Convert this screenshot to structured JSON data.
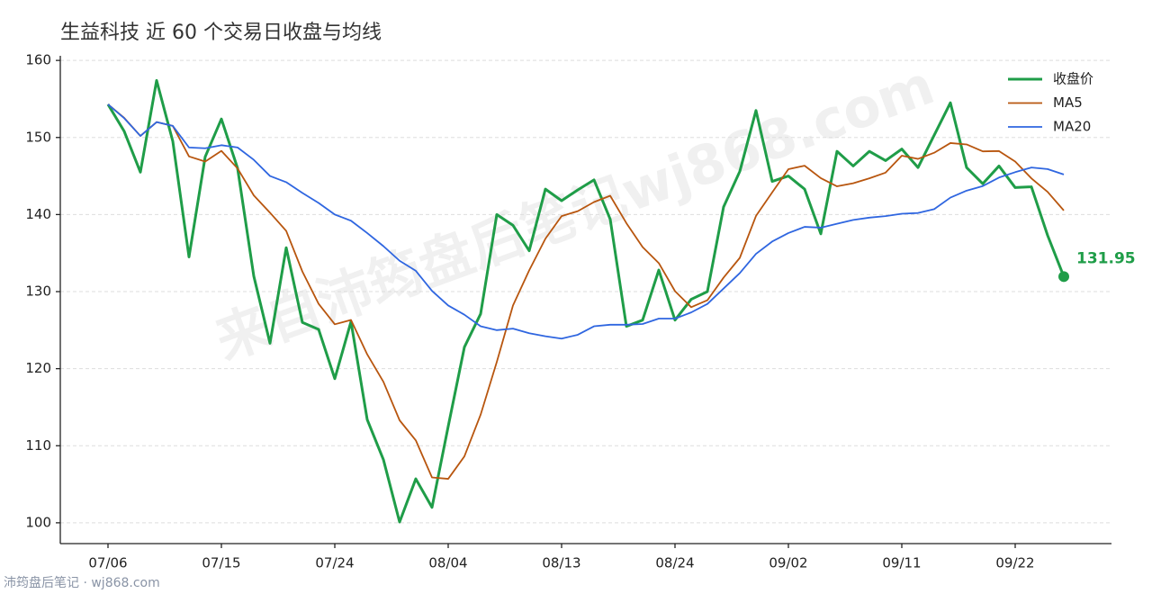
{
  "chart_data": {
    "type": "line",
    "title": "生益科技 近 60 个交易日收盘与均线",
    "watermark": "来自沛筠盘后笔记wj868.com",
    "footer": "沛筠盘后笔记 · wj868.com",
    "categories": [
      "07/06",
      null,
      null,
      null,
      null,
      null,
      null,
      "07/15",
      null,
      null,
      null,
      null,
      null,
      null,
      "07/24",
      null,
      null,
      null,
      null,
      null,
      null,
      "08/04",
      null,
      null,
      null,
      null,
      null,
      null,
      "08/13",
      null,
      null,
      null,
      null,
      null,
      null,
      "08/24",
      null,
      null,
      null,
      null,
      null,
      null,
      "09/02",
      null,
      null,
      null,
      null,
      null,
      null,
      "09/11",
      null,
      null,
      null,
      null,
      null,
      null,
      "09/22",
      null,
      null,
      null
    ],
    "ylim": [
      97.3,
      160.6
    ],
    "yticks": [
      100,
      110,
      120,
      130,
      140,
      150,
      160
    ],
    "grid": true,
    "legend": "upper right",
    "series": [
      {
        "name": "收盘价",
        "color": "#1f9d48",
        "width": 3,
        "last_label": true,
        "values": [
          154.3,
          150.8,
          145.5,
          157.4,
          149.5,
          134.5,
          147.5,
          152.4,
          146,
          132,
          123.3,
          135.7,
          126,
          125.1,
          118.7,
          126.1,
          113.4,
          108.2,
          100.1,
          105.7,
          102,
          112.5,
          122.8,
          127.1,
          140,
          138.6,
          135.3,
          143.3,
          141.8,
          143.2,
          144.5,
          139.4,
          125.5,
          126.3,
          132.8,
          126.3,
          129,
          130,
          141,
          145.6,
          153.5,
          144.3,
          145,
          143.3,
          137.5,
          148.2,
          146.3,
          148.2,
          147,
          148.5,
          146.1,
          150.3,
          154.5,
          146.1,
          144,
          146.3,
          143.5,
          143.6,
          137.3,
          131.95
        ]
      },
      {
        "name": "MA5",
        "color": "#b8560f",
        "width": 1.8,
        "values": [
          154.3,
          152.55,
          150.2,
          152.0,
          151.5,
          147.54,
          146.88,
          148.26,
          145.98,
          142.48,
          140.24,
          137.88,
          132.6,
          128.42,
          125.76,
          126.32,
          121.86,
          118.3,
          113.3,
          110.7,
          105.88,
          105.7,
          108.62,
          114.02,
          120.88,
          128.2,
          132.76,
          136.86,
          139.8,
          140.44,
          141.62,
          142.44,
          138.88,
          135.78,
          133.7,
          130.06,
          127.98,
          128.88,
          131.82,
          134.38,
          139.82,
          142.88,
          145.88,
          146.34,
          144.72,
          143.66,
          144.06,
          144.7,
          145.44,
          147.64,
          147.22,
          148.02,
          149.28,
          149.1,
          148.2,
          148.24,
          146.88,
          144.7,
          142.94,
          140.53
        ]
      },
      {
        "name": "MA20",
        "color": "#2f66e0",
        "width": 1.8,
        "values": [
          154.3,
          152.5,
          150.2,
          152.0,
          151.5,
          148.7,
          148.6,
          149.0,
          148.7,
          147.1,
          145.0,
          144.2,
          142.8,
          141.5,
          140.0,
          139.2,
          137.6,
          135.9,
          134.0,
          132.7,
          130.1,
          128.2,
          127.0,
          125.5,
          125.0,
          125.2,
          124.6,
          124.2,
          123.9,
          124.4,
          125.5,
          125.7,
          125.7,
          125.8,
          126.5,
          126.5,
          127.3,
          128.4,
          130.4,
          132.4,
          134.9,
          136.5,
          137.6,
          138.4,
          138.3,
          138.8,
          139.3,
          139.6,
          139.8,
          140.1,
          140.2,
          140.7,
          142.2,
          143.1,
          143.7,
          144.8,
          145.5,
          146.1,
          145.9,
          145.2
        ]
      }
    ]
  }
}
